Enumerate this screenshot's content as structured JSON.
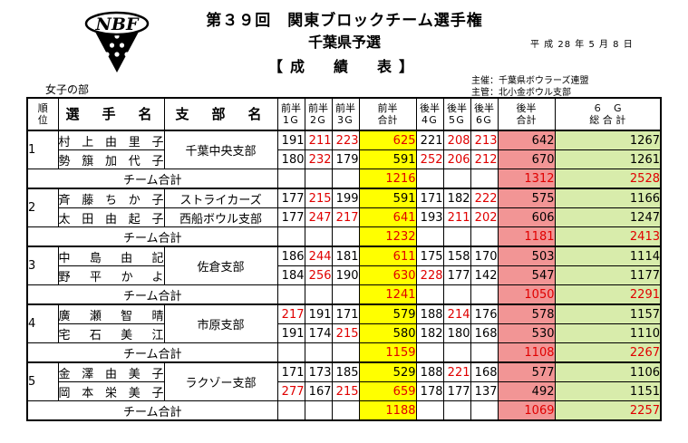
{
  "logo": {
    "text": "NBF"
  },
  "header": {
    "title": "第３９回　関東ブロックチーム選手権",
    "subtitle": "千葉県予選",
    "section": "【成　績　表】",
    "date": "平 成 28 年 5 月 8 日",
    "organizer": "主催：千葉県ボウラーズ連盟",
    "manager": "主管：北小金ボウル支部",
    "division": "女子の部"
  },
  "table": {
    "headers": {
      "rank": "順\n位",
      "player": "選　手　名",
      "club": "支　部　名",
      "g1": "前半\n1Ｇ",
      "g2": "前半\n2Ｇ",
      "g3": "前半\n3Ｇ",
      "first_total": "前半\n合計",
      "g4": "後半\n4Ｇ",
      "g5": "後半\n5Ｇ",
      "g6": "後半\n6Ｇ",
      "second_total": "後半\n合計",
      "total": "６　Ｇ\n総 合 計"
    },
    "team_label": "チーム合計",
    "teams": [
      {
        "rank": "1",
        "club": "千葉中央支部",
        "players": [
          {
            "name": "村上由里子",
            "g": [
              "191",
              "211",
              "223"
            ],
            "first": "625",
            "g2": [
              "221",
              "208",
              "213"
            ],
            "second": "642",
            "total": "1267",
            "hi": [
              false,
              true,
              true,
              true,
              false,
              true,
              true
            ]
          },
          {
            "name": "勢簱加代子",
            "g": [
              "180",
              "232",
              "179"
            ],
            "first": "591",
            "g2": [
              "252",
              "206",
              "212"
            ],
            "second": "670",
            "total": "1261",
            "hi": [
              false,
              true,
              false,
              false,
              true,
              true,
              true
            ]
          }
        ],
        "team": {
          "first": "1216",
          "second": "1312",
          "total": "2528"
        }
      },
      {
        "rank": "2",
        "club_rows": [
          "ストライカーズ",
          "西船ボウル支部"
        ],
        "players": [
          {
            "name": "斉藤ちか子",
            "g": [
              "177",
              "215",
              "199"
            ],
            "first": "591",
            "g2": [
              "171",
              "182",
              "222"
            ],
            "second": "575",
            "total": "1166",
            "hi": [
              false,
              true,
              false,
              false,
              false,
              false,
              true
            ]
          },
          {
            "name": "太田由起子",
            "g": [
              "177",
              "247",
              "217"
            ],
            "first": "641",
            "g2": [
              "193",
              "211",
              "202"
            ],
            "second": "606",
            "total": "1247",
            "hi": [
              false,
              true,
              true,
              true,
              false,
              true,
              true
            ]
          }
        ],
        "team": {
          "first": "1232",
          "second": "1181",
          "total": "2413"
        }
      },
      {
        "rank": "3",
        "club": "佐倉支部",
        "players": [
          {
            "name": "中島由記",
            "g": [
              "186",
              "244",
              "181"
            ],
            "first": "611",
            "g2": [
              "175",
              "158",
              "170"
            ],
            "second": "503",
            "total": "1114",
            "hi": [
              false,
              true,
              false,
              true,
              false,
              false,
              false
            ]
          },
          {
            "name": "野平かよ",
            "g": [
              "184",
              "256",
              "190"
            ],
            "first": "630",
            "g2": [
              "228",
              "177",
              "142"
            ],
            "second": "547",
            "total": "1177",
            "hi": [
              false,
              true,
              false,
              true,
              true,
              false,
              false
            ]
          }
        ],
        "team": {
          "first": "1241",
          "second": "1050",
          "total": "2291"
        }
      },
      {
        "rank": "4",
        "club": "市原支部",
        "players": [
          {
            "name": "廣瀬智晴",
            "g": [
              "217",
              "191",
              "171"
            ],
            "first": "579",
            "g2": [
              "188",
              "214",
              "176"
            ],
            "second": "578",
            "total": "1157",
            "hi": [
              true,
              false,
              false,
              false,
              false,
              true,
              false
            ]
          },
          {
            "name": "宅石美江",
            "g": [
              "191",
              "174",
              "215"
            ],
            "first": "580",
            "g2": [
              "182",
              "180",
              "168"
            ],
            "second": "530",
            "total": "1110",
            "hi": [
              false,
              false,
              true,
              false,
              false,
              false,
              false
            ]
          }
        ],
        "team": {
          "first": "1159",
          "second": "1108",
          "total": "2267"
        }
      },
      {
        "rank": "5",
        "club": "ラクゾー支部",
        "players": [
          {
            "name": "金澤由美子",
            "g": [
              "171",
              "173",
              "185"
            ],
            "first": "529",
            "g2": [
              "188",
              "221",
              "168"
            ],
            "second": "577",
            "total": "1106",
            "hi": [
              false,
              false,
              false,
              false,
              false,
              true,
              false
            ]
          },
          {
            "name": "岡本栄美子",
            "g": [
              "277",
              "167",
              "215"
            ],
            "first": "659",
            "g2": [
              "178",
              "177",
              "137"
            ],
            "second": "492",
            "total": "1151",
            "hi": [
              true,
              false,
              true,
              true,
              false,
              false,
              false
            ]
          }
        ],
        "team": {
          "first": "1188",
          "second": "1069",
          "total": "2257"
        }
      }
    ]
  },
  "colors": {
    "first_total_bg": "#ffff00",
    "second_total_bg": "#f29595",
    "total_bg": "#d8ecab",
    "highlight_text": "#e00000"
  }
}
